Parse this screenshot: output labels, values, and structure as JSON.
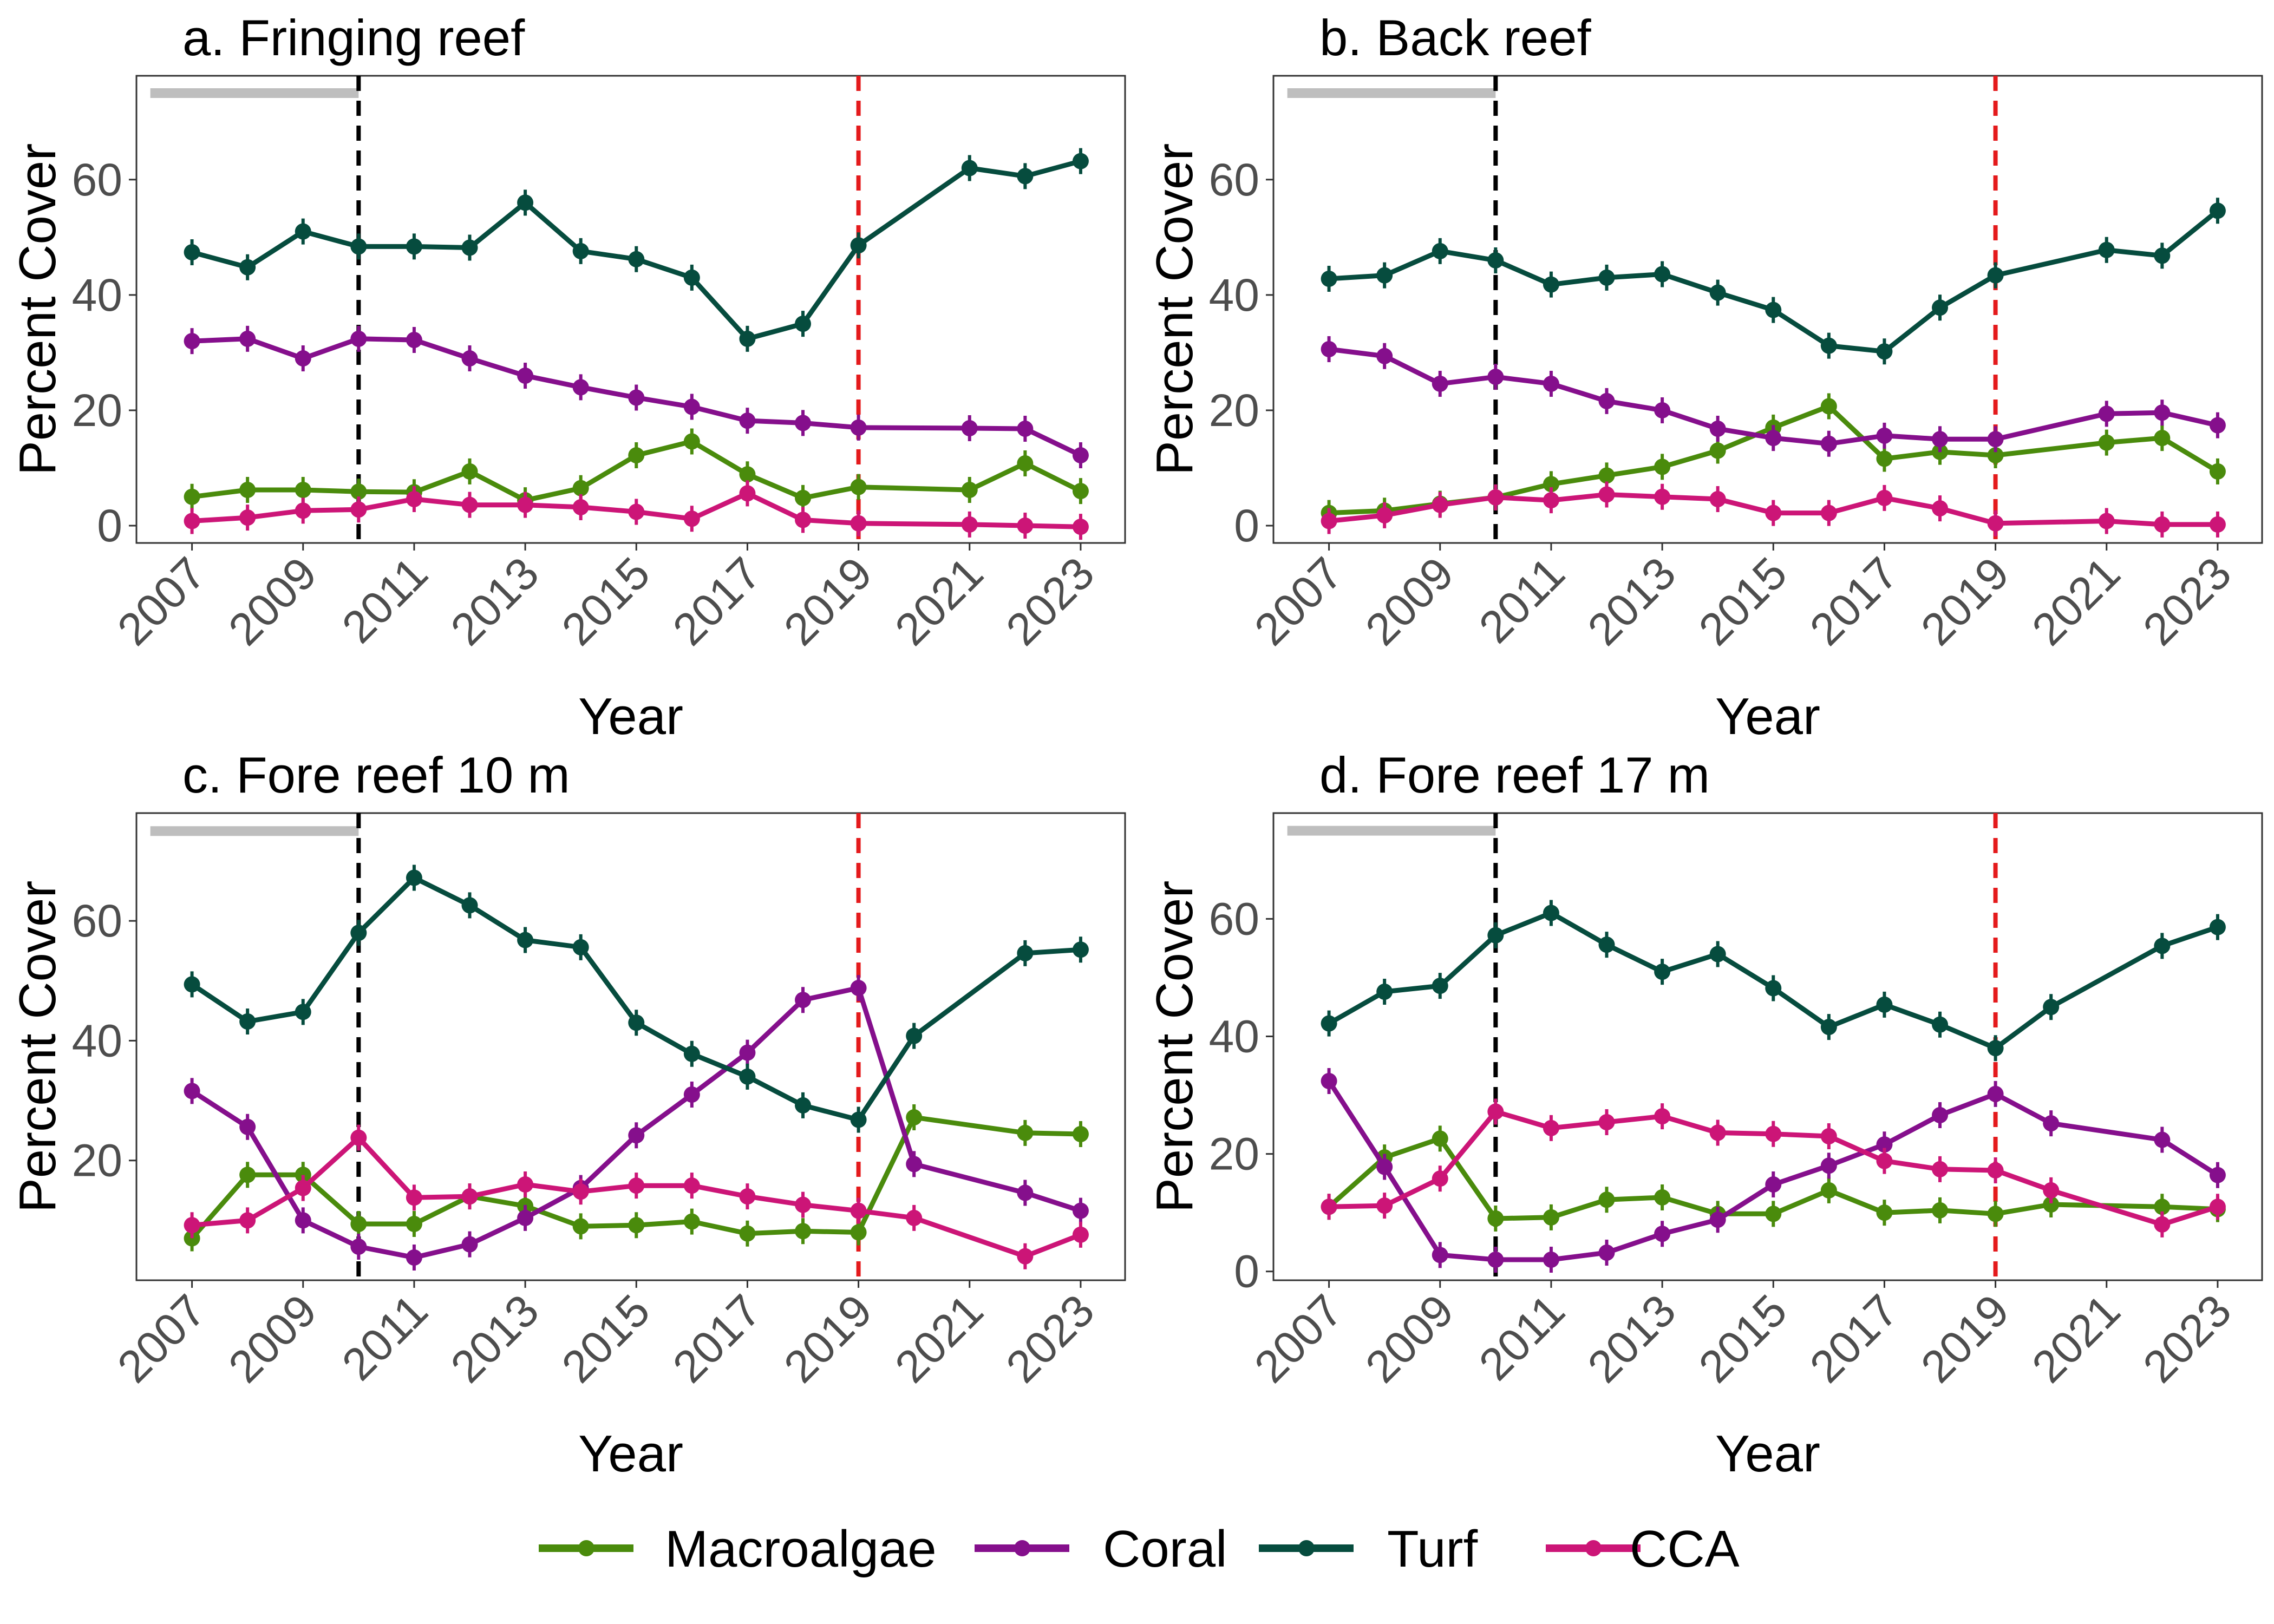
{
  "legend": [
    {
      "label": "Macroalgae",
      "color": "#4a8b0c"
    },
    {
      "label": "Coral",
      "color": "#850f8c"
    },
    {
      "label": "Turf",
      "color": "#064c3e"
    },
    {
      "label": "CCA",
      "color": "#cc1577"
    }
  ],
  "chart_data": [
    {
      "type": "line",
      "title": "a. Fringing reef",
      "xlabel": "Year",
      "ylabel": "Percent Cover",
      "xlim": [
        2006.0,
        2023.8
      ],
      "ylim": [
        -3,
        78
      ],
      "xticks": [
        2007,
        2009,
        2011,
        2013,
        2015,
        2017,
        2019,
        2021,
        2023
      ],
      "yticks": [
        0,
        20,
        40,
        60
      ],
      "grid": false,
      "gray_bar": {
        "x": [
          2006.25,
          2010
        ],
        "y": 75
      },
      "vlines": [
        {
          "x": 2010,
          "color": "#000000"
        },
        {
          "x": 2019,
          "color": "#e41a1c"
        }
      ],
      "series": [
        {
          "name": "Macroalgae",
          "color": "#4a8b0c",
          "x": [
            2007,
            2008,
            2009,
            2010,
            2011,
            2012,
            2013,
            2014,
            2015,
            2016,
            2017,
            2018,
            2019,
            2021,
            2022,
            2023
          ],
          "y": [
            5.0,
            6.2,
            6.2,
            5.9,
            5.8,
            9.4,
            4.4,
            6.5,
            12.2,
            14.6,
            8.9,
            4.8,
            6.7,
            6.2,
            10.8,
            6.0
          ]
        },
        {
          "name": "Coral",
          "color": "#850f8c",
          "x": [
            2007,
            2008,
            2009,
            2010,
            2011,
            2012,
            2013,
            2014,
            2015,
            2016,
            2017,
            2018,
            2019,
            2021,
            2022,
            2023
          ],
          "y": [
            32.0,
            32.4,
            29.0,
            32.4,
            32.2,
            29.0,
            26.0,
            24.0,
            22.2,
            20.6,
            18.2,
            17.8,
            17.0,
            16.9,
            16.8,
            12.2
          ]
        },
        {
          "name": "Turf",
          "color": "#064c3e",
          "x": [
            2007,
            2008,
            2009,
            2010,
            2011,
            2012,
            2013,
            2014,
            2015,
            2016,
            2017,
            2018,
            2019,
            2021,
            2022,
            2023
          ],
          "y": [
            47.4,
            44.8,
            51.0,
            48.4,
            48.4,
            48.2,
            56.0,
            47.6,
            46.2,
            43.0,
            32.4,
            35.0,
            48.6,
            62.0,
            60.6,
            63.2
          ]
        },
        {
          "name": "CCA",
          "color": "#cc1577",
          "x": [
            2007,
            2008,
            2009,
            2010,
            2011,
            2012,
            2013,
            2014,
            2015,
            2016,
            2017,
            2018,
            2019,
            2021,
            2022,
            2023
          ],
          "y": [
            0.8,
            1.4,
            2.6,
            2.8,
            4.6,
            3.6,
            3.6,
            3.2,
            2.4,
            1.2,
            5.6,
            1.0,
            0.4,
            0.2,
            0.0,
            -0.2
          ]
        }
      ]
    },
    {
      "type": "line",
      "title": "b. Back reef",
      "xlabel": "Year",
      "ylabel": "Percent Cover",
      "xlim": [
        2006.0,
        2023.8
      ],
      "ylim": [
        -3,
        78
      ],
      "xticks": [
        2007,
        2009,
        2011,
        2013,
        2015,
        2017,
        2019,
        2021,
        2023
      ],
      "yticks": [
        0,
        20,
        40,
        60
      ],
      "grid": false,
      "gray_bar": {
        "x": [
          2006.25,
          2010
        ],
        "y": 75
      },
      "vlines": [
        {
          "x": 2010,
          "color": "#000000"
        },
        {
          "x": 2019,
          "color": "#e41a1c"
        }
      ],
      "series": [
        {
          "name": "Macroalgae",
          "color": "#4a8b0c",
          "x": [
            2007,
            2008,
            2009,
            2010,
            2011,
            2012,
            2013,
            2014,
            2015,
            2016,
            2017,
            2018,
            2019,
            2021,
            2022,
            2023
          ],
          "y": [
            2.2,
            2.6,
            3.8,
            4.9,
            7.2,
            8.7,
            10.2,
            13.0,
            17.0,
            20.7,
            11.6,
            12.8,
            12.2,
            14.4,
            15.2,
            9.4
          ]
        },
        {
          "name": "Coral",
          "color": "#850f8c",
          "x": [
            2007,
            2008,
            2009,
            2010,
            2011,
            2012,
            2013,
            2014,
            2015,
            2016,
            2017,
            2018,
            2019,
            2021,
            2022,
            2023
          ],
          "y": [
            30.6,
            29.4,
            24.6,
            25.8,
            24.6,
            21.6,
            20.0,
            16.8,
            15.2,
            14.2,
            15.6,
            15.0,
            15.0,
            19.4,
            19.6,
            17.4
          ]
        },
        {
          "name": "Turf",
          "color": "#064c3e",
          "x": [
            2007,
            2008,
            2009,
            2010,
            2011,
            2012,
            2013,
            2014,
            2015,
            2016,
            2017,
            2018,
            2019,
            2021,
            2022,
            2023
          ],
          "y": [
            42.8,
            43.4,
            47.6,
            46.0,
            41.8,
            43.0,
            43.6,
            40.4,
            37.4,
            31.2,
            30.2,
            37.8,
            43.4,
            47.8,
            46.8,
            54.6
          ]
        },
        {
          "name": "CCA",
          "color": "#cc1577",
          "x": [
            2007,
            2008,
            2009,
            2010,
            2011,
            2012,
            2013,
            2014,
            2015,
            2016,
            2017,
            2018,
            2019,
            2021,
            2022,
            2023
          ],
          "y": [
            0.8,
            1.8,
            3.6,
            4.9,
            4.4,
            5.4,
            5.0,
            4.6,
            2.2,
            2.2,
            4.8,
            3.0,
            0.4,
            0.8,
            0.2,
            0.2
          ]
        }
      ]
    },
    {
      "type": "line",
      "title": "c. Fore reef 10 m",
      "xlabel": "Year",
      "ylabel": "Percent Cover",
      "xlim": [
        2006.0,
        2023.8
      ],
      "ylim": [
        0,
        78
      ],
      "xticks": [
        2007,
        2009,
        2011,
        2013,
        2015,
        2017,
        2019,
        2021,
        2023
      ],
      "yticks": [
        20,
        40,
        60
      ],
      "grid": false,
      "gray_bar": {
        "x": [
          2006.25,
          2010
        ],
        "y": 75
      },
      "vlines": [
        {
          "x": 2010,
          "color": "#000000"
        },
        {
          "x": 2019,
          "color": "#e41a1c"
        }
      ],
      "series": [
        {
          "name": "Macroalgae",
          "color": "#4a8b0c",
          "x": [
            2007,
            2008,
            2009,
            2010,
            2011,
            2012,
            2013,
            2014,
            2015,
            2016,
            2017,
            2018,
            2019,
            2020,
            2022,
            2023
          ],
          "y": [
            7.0,
            17.6,
            17.6,
            9.4,
            9.4,
            14.0,
            12.4,
            9.0,
            9.2,
            9.8,
            7.8,
            8.2,
            8.0,
            27.2,
            24.6,
            24.4
          ]
        },
        {
          "name": "Coral",
          "color": "#850f8c",
          "x": [
            2007,
            2008,
            2009,
            2010,
            2011,
            2012,
            2013,
            2014,
            2015,
            2016,
            2017,
            2018,
            2019,
            2020,
            2022,
            2023
          ],
          "y": [
            31.6,
            25.6,
            10.0,
            5.6,
            3.8,
            6.0,
            10.4,
            15.4,
            24.2,
            31.0,
            38.0,
            46.8,
            48.8,
            19.4,
            14.6,
            11.6
          ]
        },
        {
          "name": "Turf",
          "color": "#064c3e",
          "x": [
            2007,
            2008,
            2009,
            2010,
            2011,
            2012,
            2013,
            2014,
            2015,
            2016,
            2017,
            2018,
            2019,
            2020,
            2022,
            2023
          ],
          "y": [
            49.4,
            43.2,
            44.8,
            58.0,
            67.2,
            62.6,
            56.8,
            55.6,
            43.0,
            37.8,
            34.0,
            29.2,
            26.8,
            40.8,
            54.6,
            55.2
          ]
        },
        {
          "name": "CCA",
          "color": "#cc1577",
          "x": [
            2007,
            2008,
            2009,
            2010,
            2011,
            2012,
            2013,
            2014,
            2015,
            2016,
            2017,
            2018,
            2019,
            2020,
            2022,
            2023
          ],
          "y": [
            9.2,
            10.0,
            15.4,
            23.8,
            13.8,
            14.0,
            16.0,
            14.8,
            15.8,
            15.8,
            14.0,
            12.6,
            11.6,
            10.4,
            4.0,
            7.6
          ]
        }
      ]
    },
    {
      "type": "line",
      "title": "d. Fore reef 17 m",
      "xlabel": "Year",
      "ylabel": "Percent Cover",
      "xlim": [
        2006.0,
        2023.8
      ],
      "ylim": [
        -1.5,
        78
      ],
      "xticks": [
        2007,
        2009,
        2011,
        2013,
        2015,
        2017,
        2019,
        2021,
        2023
      ],
      "yticks": [
        0,
        20,
        40,
        60
      ],
      "grid": false,
      "gray_bar": {
        "x": [
          2006.25,
          2010
        ],
        "y": 75
      },
      "vlines": [
        {
          "x": 2010,
          "color": "#000000"
        },
        {
          "x": 2019,
          "color": "#e41a1c"
        }
      ],
      "series": [
        {
          "name": "Macroalgae",
          "color": "#4a8b0c",
          "x": [
            2007,
            2008,
            2009,
            2010,
            2011,
            2012,
            2013,
            2014,
            2015,
            2016,
            2017,
            2018,
            2019,
            2020,
            2022,
            2023
          ],
          "y": [
            11.0,
            19.4,
            22.6,
            9.0,
            9.2,
            12.2,
            12.6,
            9.8,
            9.8,
            13.8,
            10.0,
            10.4,
            9.8,
            11.4,
            11.0,
            10.6
          ]
        },
        {
          "name": "Coral",
          "color": "#850f8c",
          "x": [
            2007,
            2008,
            2009,
            2010,
            2011,
            2012,
            2013,
            2014,
            2015,
            2016,
            2017,
            2018,
            2019,
            2020,
            2022,
            2023
          ],
          "y": [
            32.4,
            17.8,
            2.8,
            2.0,
            2.0,
            3.2,
            6.4,
            8.8,
            14.8,
            18.0,
            21.6,
            26.6,
            30.2,
            25.2,
            22.4,
            16.4
          ]
        },
        {
          "name": "Turf",
          "color": "#064c3e",
          "x": [
            2007,
            2008,
            2009,
            2010,
            2011,
            2012,
            2013,
            2014,
            2015,
            2016,
            2017,
            2018,
            2019,
            2020,
            2022,
            2023
          ],
          "y": [
            42.2,
            47.6,
            48.6,
            57.2,
            61.0,
            55.6,
            51.0,
            54.0,
            48.2,
            41.6,
            45.4,
            42.0,
            38.0,
            45.0,
            55.4,
            58.6
          ]
        },
        {
          "name": "CCA",
          "color": "#cc1577",
          "x": [
            2007,
            2008,
            2009,
            2010,
            2011,
            2012,
            2013,
            2014,
            2015,
            2016,
            2017,
            2018,
            2019,
            2020,
            2022,
            2023
          ],
          "y": [
            11.0,
            11.2,
            15.8,
            27.2,
            24.4,
            25.4,
            26.4,
            23.6,
            23.4,
            23.0,
            18.8,
            17.4,
            17.2,
            13.8,
            8.0,
            11.0
          ]
        }
      ]
    }
  ]
}
